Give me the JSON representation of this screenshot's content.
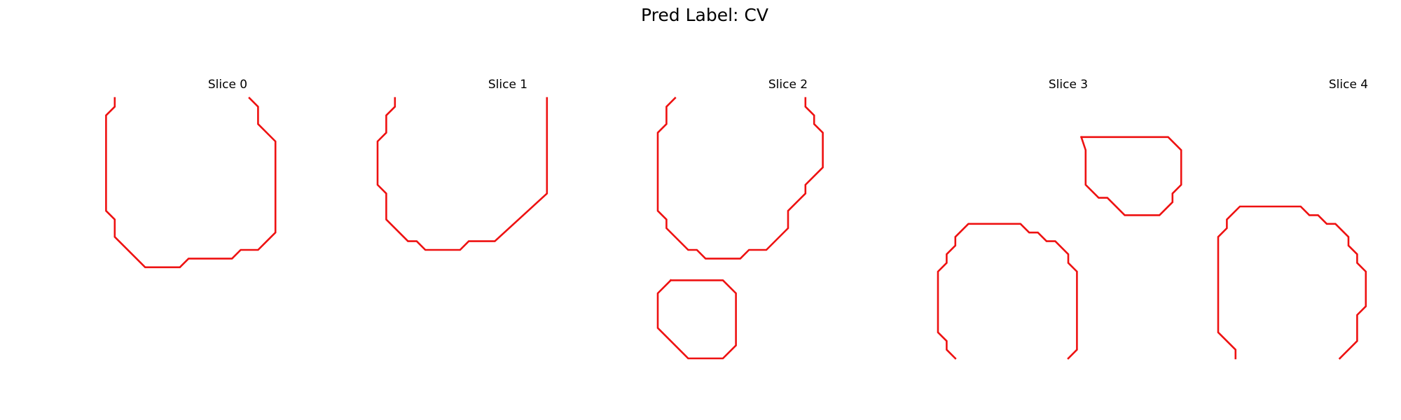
{
  "title": "Pred Label: CV",
  "colors": {
    "contour": "#ee1111",
    "background": "#ffffff"
  },
  "chart_data": {
    "type": "line",
    "title": "Pred Label: CV",
    "grid": false,
    "axes_visible": false,
    "panels": [
      {
        "title": "Slice 0",
        "contours": [
          [
            [
              2,
              0
            ],
            [
              2,
              1
            ],
            [
              1,
              2
            ],
            [
              1,
              13
            ],
            [
              2,
              14
            ],
            [
              2,
              16
            ],
            [
              5.5,
              19.5
            ],
            [
              9.5,
              19.5
            ],
            [
              10.5,
              18.5
            ],
            [
              15.5,
              18.5
            ],
            [
              16.5,
              17.5
            ],
            [
              18.5,
              17.5
            ],
            [
              20.5,
              15.5
            ],
            [
              20.5,
              5
            ],
            [
              18.5,
              3
            ],
            [
              18.5,
              1
            ],
            [
              17.5,
              0
            ]
          ]
        ]
      },
      {
        "title": "Slice 1",
        "contours": [
          [
            [
              2,
              0
            ],
            [
              2,
              1
            ],
            [
              1,
              2
            ],
            [
              1,
              4
            ],
            [
              0,
              5
            ],
            [
              0,
              10
            ],
            [
              1,
              11
            ],
            [
              1,
              14
            ],
            [
              3.5,
              16.5
            ],
            [
              4.5,
              16.5
            ],
            [
              5.5,
              17.5
            ],
            [
              9.5,
              17.5
            ],
            [
              10.5,
              16.5
            ],
            [
              13.5,
              16.5
            ],
            [
              19.5,
              11
            ],
            [
              19.5,
              0
            ]
          ]
        ]
      },
      {
        "title": "Slice 2",
        "contours": [
          [
            [
              2,
              0
            ],
            [
              1,
              1
            ],
            [
              1,
              3
            ],
            [
              0,
              4
            ],
            [
              0,
              13
            ],
            [
              1,
              14
            ],
            [
              1,
              15
            ],
            [
              3.5,
              17.5
            ],
            [
              4.5,
              17.5
            ],
            [
              5.5,
              18.5
            ],
            [
              9.5,
              18.5
            ],
            [
              10.5,
              17.5
            ],
            [
              12.5,
              17.5
            ],
            [
              15,
              15
            ],
            [
              15,
              13
            ],
            [
              17,
              11
            ],
            [
              17,
              10
            ],
            [
              19,
              8
            ],
            [
              19,
              4
            ],
            [
              18,
              3
            ],
            [
              18,
              2
            ],
            [
              17,
              1
            ],
            [
              17,
              0
            ]
          ],
          [
            [
              1.5,
              21
            ],
            [
              0,
              22.5
            ],
            [
              0,
              26.5
            ],
            [
              3.5,
              30
            ],
            [
              7.5,
              30
            ],
            [
              9,
              28.5
            ],
            [
              9,
              22.5
            ],
            [
              7.5,
              21
            ],
            [
              1.5,
              21
            ]
          ]
        ]
      },
      {
        "title": "Slice 3",
        "contours": [
          [
            [
              16.5,
              4.5
            ],
            [
              26.5,
              4.5
            ],
            [
              28,
              6
            ],
            [
              28,
              10
            ],
            [
              27,
              11
            ],
            [
              27,
              12
            ],
            [
              25.5,
              13.5
            ],
            [
              21.5,
              13.5
            ],
            [
              19.5,
              11.5
            ],
            [
              18.5,
              11.5
            ],
            [
              17,
              10
            ],
            [
              17,
              6
            ],
            [
              16.5,
              4.5
            ]
          ],
          [
            [
              2,
              30
            ],
            [
              1,
              29
            ],
            [
              1,
              28
            ],
            [
              0,
              27
            ],
            [
              0,
              20
            ],
            [
              1,
              19
            ],
            [
              1,
              18
            ],
            [
              2,
              17
            ],
            [
              2,
              16
            ],
            [
              3.5,
              14.5
            ],
            [
              9.5,
              14.5
            ],
            [
              10.5,
              15.5
            ],
            [
              11.5,
              15.5
            ],
            [
              12.5,
              16.5
            ],
            [
              13.5,
              16.5
            ],
            [
              15,
              18
            ],
            [
              15,
              19
            ],
            [
              16,
              20
            ],
            [
              16,
              29
            ],
            [
              15,
              30
            ]
          ]
        ]
      },
      {
        "title": "Slice 4",
        "contours": [
          [
            [
              2,
              30
            ],
            [
              2,
              29
            ],
            [
              0,
              27
            ],
            [
              0,
              16
            ],
            [
              1,
              15
            ],
            [
              1,
              14
            ],
            [
              2.5,
              12.5
            ],
            [
              9.5,
              12.5
            ],
            [
              10.5,
              13.5
            ],
            [
              11.5,
              13.5
            ],
            [
              12.5,
              14.5
            ],
            [
              13.5,
              14.5
            ],
            [
              15,
              16
            ],
            [
              15,
              17
            ],
            [
              16,
              18
            ],
            [
              16,
              19
            ],
            [
              17,
              20
            ],
            [
              17,
              24
            ],
            [
              16,
              25
            ],
            [
              16,
              28
            ],
            [
              14,
              30
            ]
          ]
        ]
      }
    ]
  }
}
